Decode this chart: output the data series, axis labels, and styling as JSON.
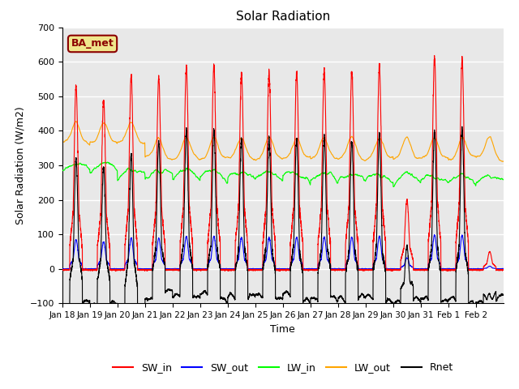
{
  "title": "Solar Radiation",
  "xlabel": "Time",
  "ylabel": "Solar Radiation (W/m2)",
  "ylim": [
    -100,
    700
  ],
  "yticks": [
    -100,
    0,
    100,
    200,
    300,
    400,
    500,
    600,
    700
  ],
  "xtick_labels": [
    "Jan 18",
    "Jan 19",
    "Jan 20",
    "Jan 21",
    "Jan 22",
    "Jan 23",
    "Jan 24",
    "Jan 25",
    "Jan 26",
    "Jan 27",
    "Jan 28",
    "Jan 29",
    "Jan 30",
    "Jan 31",
    "Feb 1",
    "Feb 2"
  ],
  "legend_labels": [
    "SW_in",
    "SW_out",
    "LW_in",
    "LW_out",
    "Rnet"
  ],
  "legend_colors": [
    "red",
    "blue",
    "lime",
    "orange",
    "black"
  ],
  "annotation_text": "BA_met",
  "colors": {
    "SW_in": "red",
    "SW_out": "blue",
    "LW_in": "lime",
    "LW_out": "orange",
    "Rnet": "black"
  },
  "background_color": "#e8e8e8",
  "n_days": 16,
  "points_per_day": 288,
  "sw_peaks": [
    530,
    490,
    560,
    555,
    585,
    590,
    570,
    570,
    570,
    575,
    575,
    590,
    200,
    615,
    610,
    50
  ],
  "figsize": [
    6.4,
    4.8
  ],
  "dpi": 100
}
